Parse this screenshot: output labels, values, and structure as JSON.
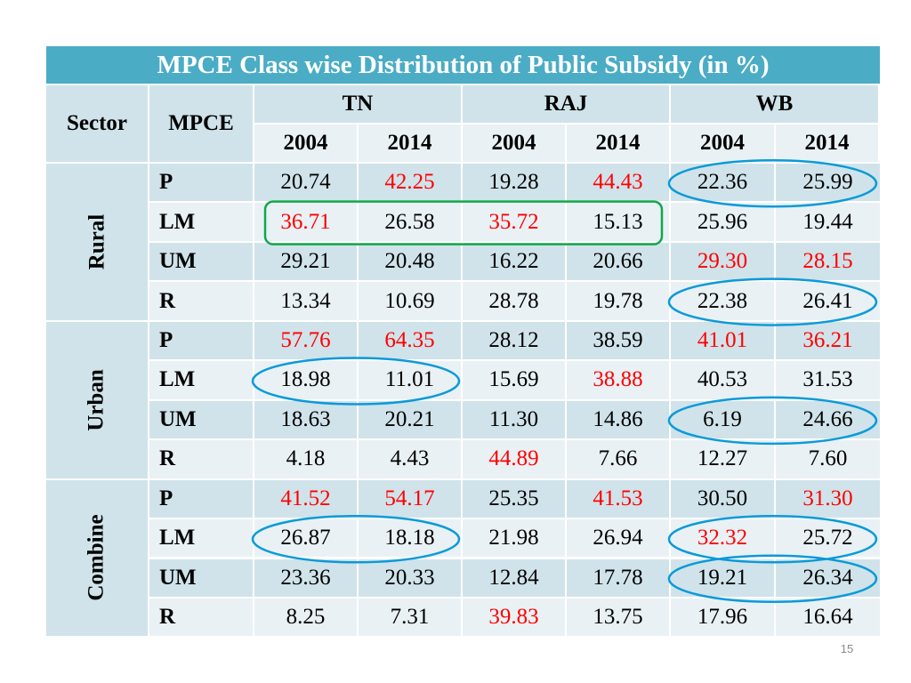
{
  "title": "MPCE Class wise Distribution of Public Subsidy (in %)",
  "header": {
    "sector": "Sector",
    "mpce": "MPCE",
    "states": [
      "TN",
      "RAJ",
      "WB"
    ],
    "years": [
      "2004",
      "2014",
      "2004",
      "2014",
      "2004",
      "2014"
    ]
  },
  "colors": {
    "title_bg": "#4bacc6",
    "band_dark": "#d0e3ea",
    "band_light": "#e9f1f5",
    "red_text": "#ff0000",
    "blue_ellipse": "#0b9ad8",
    "green_rect": "#10a84a"
  },
  "sections": [
    {
      "sector": "Rural",
      "rows": [
        {
          "mpce": "P",
          "values": [
            "20.74",
            "42.25",
            "19.28",
            "44.43",
            "22.36",
            "25.99"
          ],
          "red": [
            false,
            true,
            false,
            true,
            false,
            false
          ]
        },
        {
          "mpce": "LM",
          "values": [
            "36.71",
            "26.58",
            "35.72",
            "15.13",
            "25.96",
            "19.44"
          ],
          "red": [
            true,
            false,
            true,
            false,
            false,
            false
          ]
        },
        {
          "mpce": "UM",
          "values": [
            "29.21",
            "20.48",
            "16.22",
            "20.66",
            "29.30",
            "28.15"
          ],
          "red": [
            false,
            false,
            false,
            false,
            true,
            true
          ]
        },
        {
          "mpce": "R",
          "values": [
            "13.34",
            "10.69",
            "28.78",
            "19.78",
            "22.38",
            "26.41"
          ],
          "red": [
            false,
            false,
            false,
            false,
            false,
            false
          ]
        }
      ]
    },
    {
      "sector": "Urban",
      "rows": [
        {
          "mpce": "P",
          "values": [
            "57.76",
            "64.35",
            "28.12",
            "38.59",
            "41.01",
            "36.21"
          ],
          "red": [
            true,
            true,
            false,
            false,
            true,
            true
          ]
        },
        {
          "mpce": "LM",
          "values": [
            "18.98",
            "11.01",
            "15.69",
            "38.88",
            "40.53",
            "31.53"
          ],
          "red": [
            false,
            false,
            false,
            true,
            false,
            false
          ]
        },
        {
          "mpce": "UM",
          "values": [
            "18.63",
            "20.21",
            "11.30",
            "14.86",
            "6.19",
            "24.66"
          ],
          "red": [
            false,
            false,
            false,
            false,
            false,
            false
          ]
        },
        {
          "mpce": "R",
          "values": [
            "4.18",
            "4.43",
            "44.89",
            "7.66",
            "12.27",
            "7.60"
          ],
          "red": [
            false,
            false,
            true,
            false,
            false,
            false
          ]
        }
      ]
    },
    {
      "sector": "Combine",
      "rows": [
        {
          "mpce": "P",
          "values": [
            "41.52",
            "54.17",
            "25.35",
            "41.53",
            "30.50",
            "31.30"
          ],
          "red": [
            true,
            true,
            false,
            true,
            false,
            true
          ]
        },
        {
          "mpce": "LM",
          "values": [
            "26.87",
            "18.18",
            "21.98",
            "26.94",
            "32.32",
            "25.72"
          ],
          "red": [
            false,
            false,
            false,
            false,
            true,
            false
          ]
        },
        {
          "mpce": "UM",
          "values": [
            "23.36",
            "20.33",
            "12.84",
            "17.78",
            "19.21",
            "26.34"
          ],
          "red": [
            false,
            false,
            false,
            false,
            false,
            false
          ]
        },
        {
          "mpce": "R",
          "values": [
            "8.25",
            "7.31",
            "39.83",
            "13.75",
            "17.96",
            "16.64"
          ],
          "red": [
            false,
            false,
            true,
            false,
            false,
            false
          ]
        }
      ]
    }
  ],
  "annotations": {
    "ellipses": [
      {
        "sector": "Rural",
        "row": 0,
        "cols": [
          4,
          5
        ]
      },
      {
        "sector": "Rural",
        "row": 3,
        "cols": [
          4,
          5
        ]
      },
      {
        "sector": "Urban",
        "row": 1,
        "cols": [
          0,
          1
        ]
      },
      {
        "sector": "Urban",
        "row": 2,
        "cols": [
          4,
          5
        ]
      },
      {
        "sector": "Combine",
        "row": 1,
        "cols": [
          0,
          1
        ]
      },
      {
        "sector": "Combine",
        "row": 1,
        "cols": [
          4,
          5
        ]
      },
      {
        "sector": "Combine",
        "row": 2,
        "cols": [
          4,
          5
        ]
      }
    ],
    "rectangles": [
      {
        "sector": "Rural",
        "row": 1,
        "cols": [
          0,
          3
        ]
      }
    ]
  },
  "page_number": "15"
}
